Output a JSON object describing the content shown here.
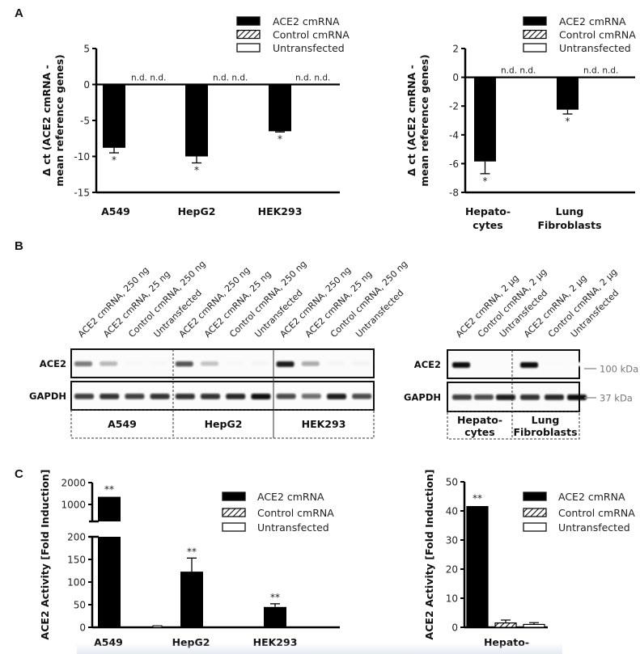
{
  "panels": {
    "a": "A",
    "b": "B",
    "c": "C"
  },
  "legend": {
    "items": [
      {
        "label": "ACE2 cmRNA",
        "style": "solid-black"
      },
      {
        "label": "Control cmRNA",
        "style": "hatched"
      },
      {
        "label": "Untransfected",
        "style": "white"
      }
    ]
  },
  "chart_data": [
    {
      "id": "A-left",
      "type": "bar",
      "title": "",
      "ylabel": [
        "Δ ct (ACE2 cmRNA -",
        "mean reference genes)"
      ],
      "xlabel": "",
      "ylim": [
        -15,
        5
      ],
      "yticks": [
        5,
        0,
        -5,
        -10,
        -15
      ],
      "categories": [
        "A549",
        "HepG2",
        "HEK293"
      ],
      "series": [
        {
          "name": "ACE2 cmRNA",
          "values": [
            -8.8,
            -10.0,
            -6.5
          ],
          "errors": [
            0.7,
            0.9,
            0.1
          ],
          "annotations": [
            "*",
            "*",
            "*"
          ]
        },
        {
          "name": "Control cmRNA",
          "values": [
            null,
            null,
            null
          ],
          "annotations": [
            "n.d.",
            "n.d.",
            "n.d."
          ]
        },
        {
          "name": "Untransfected",
          "values": [
            null,
            null,
            null
          ],
          "annotations": [
            "n.d.",
            "n.d.",
            "n.d."
          ]
        }
      ],
      "legend": "top-right"
    },
    {
      "id": "A-right",
      "type": "bar",
      "title": "",
      "ylabel": [
        "Δ ct (ACE2 cmRNA -",
        "mean reference genes)"
      ],
      "xlabel": "",
      "ylim": [
        -8,
        2
      ],
      "yticks": [
        2,
        0,
        -2,
        -4,
        -6,
        -8
      ],
      "categories": [
        [
          "Hepato-",
          "cytes"
        ],
        [
          "Lung",
          "Fibroblasts"
        ]
      ],
      "series": [
        {
          "name": "ACE2 cmRNA",
          "values": [
            -5.85,
            -2.25
          ],
          "errors": [
            0.85,
            0.3
          ],
          "annotations": [
            "*",
            "*"
          ]
        },
        {
          "name": "Control cmRNA",
          "values": [
            null,
            null
          ],
          "annotations": [
            "n.d.",
            "n.d."
          ]
        },
        {
          "name": "Untransfected",
          "values": [
            null,
            null
          ],
          "annotations": [
            "n.d.",
            "n.d."
          ]
        }
      ],
      "legend": "top-right"
    },
    {
      "id": "C-left",
      "type": "bar",
      "title": "",
      "ylabel": "ACE2 Activity [Fold Induction]",
      "xlabel": "",
      "ylim": [
        0,
        200
      ],
      "ylim_upper": [
        1000,
        2000
      ],
      "yticks": [
        0,
        50,
        100,
        150,
        200
      ],
      "yticks_upper": [
        1000,
        2000
      ],
      "axis_break": true,
      "categories": [
        "A549",
        "HepG2",
        "HEK293"
      ],
      "series": [
        {
          "name": "ACE2 cmRNA",
          "values": [
            1350,
            123,
            45
          ],
          "errors": [
            20,
            30,
            7
          ],
          "annotations": [
            "**",
            "**",
            "**"
          ]
        },
        {
          "name": "Control cmRNA",
          "values": [
            1.0,
            0.5,
            0.5
          ],
          "errors": [
            0,
            0,
            0
          ]
        },
        {
          "name": "Untransfected",
          "values": [
            1.0,
            1.0,
            1.0
          ],
          "errors": [
            0,
            0,
            0
          ]
        }
      ],
      "legend": "top-right"
    },
    {
      "id": "C-right",
      "type": "bar",
      "title": "",
      "ylabel": "ACE2 Activity [Fold Induction]",
      "xlabel": "",
      "ylim": [
        0,
        50
      ],
      "yticks": [
        0,
        10,
        20,
        30,
        40,
        50
      ],
      "categories": [
        "Hepato-"
      ],
      "series": [
        {
          "name": "ACE2 cmRNA",
          "values": [
            41.5
          ],
          "errors": [
            0
          ],
          "annotations": [
            "**"
          ]
        },
        {
          "name": "Control cmRNA",
          "values": [
            1.5
          ],
          "errors": [
            1.0
          ]
        },
        {
          "name": "Untransfected",
          "values": [
            1.0
          ],
          "errors": [
            0.6
          ]
        }
      ],
      "legend": "top-right"
    }
  ],
  "western_blot": {
    "left": {
      "lanes": [
        "ACE2 cmRNA, 250 ng",
        "ACE2 cmRNA, 25 ng",
        "Control cmRNA, 250 ng",
        "Untransfected",
        "ACE2 cmRNA, 250 ng",
        "ACE2 cmRNA, 25 ng",
        "Control cmRNA, 250 ng",
        "Untransfected",
        "ACE2 cmRNA, 250 ng",
        "ACE2 cmRNA, 25 ng",
        "Control cmRNA, 250 ng",
        "Untransfected"
      ],
      "rows": [
        "ACE2",
        "GAPDH"
      ],
      "groups": [
        "A549",
        "HepG2",
        "HEK293"
      ],
      "ace2_intensity": [
        0.55,
        0.3,
        0.03,
        0.03,
        0.7,
        0.25,
        0.03,
        0.04,
        0.95,
        0.35,
        0.04,
        0.05
      ],
      "gapdh_intensity": [
        0.8,
        0.85,
        0.8,
        0.85,
        0.85,
        0.85,
        0.9,
        1.0,
        0.75,
        0.6,
        0.95,
        0.75
      ]
    },
    "right": {
      "lanes": [
        "ACE2 cmRNA, 2 µg",
        "Control cmRNA, 2 µg",
        "Untransfected",
        "ACE2 cmRNA, 2 µg",
        "Control cmRNA, 2 µg",
        "Untransfected"
      ],
      "rows": [
        "ACE2",
        "GAPDH"
      ],
      "groups": [
        [
          "Hepato-",
          "cytes"
        ],
        [
          "Lung",
          "Fibroblasts"
        ]
      ],
      "markers": [
        "100 kDa",
        "37 kDa"
      ],
      "ace2_intensity": [
        1.0,
        0.0,
        0.0,
        1.0,
        0.02,
        0.02
      ],
      "gapdh_intensity": [
        0.8,
        0.75,
        0.95,
        0.85,
        0.9,
        1.0
      ]
    }
  }
}
